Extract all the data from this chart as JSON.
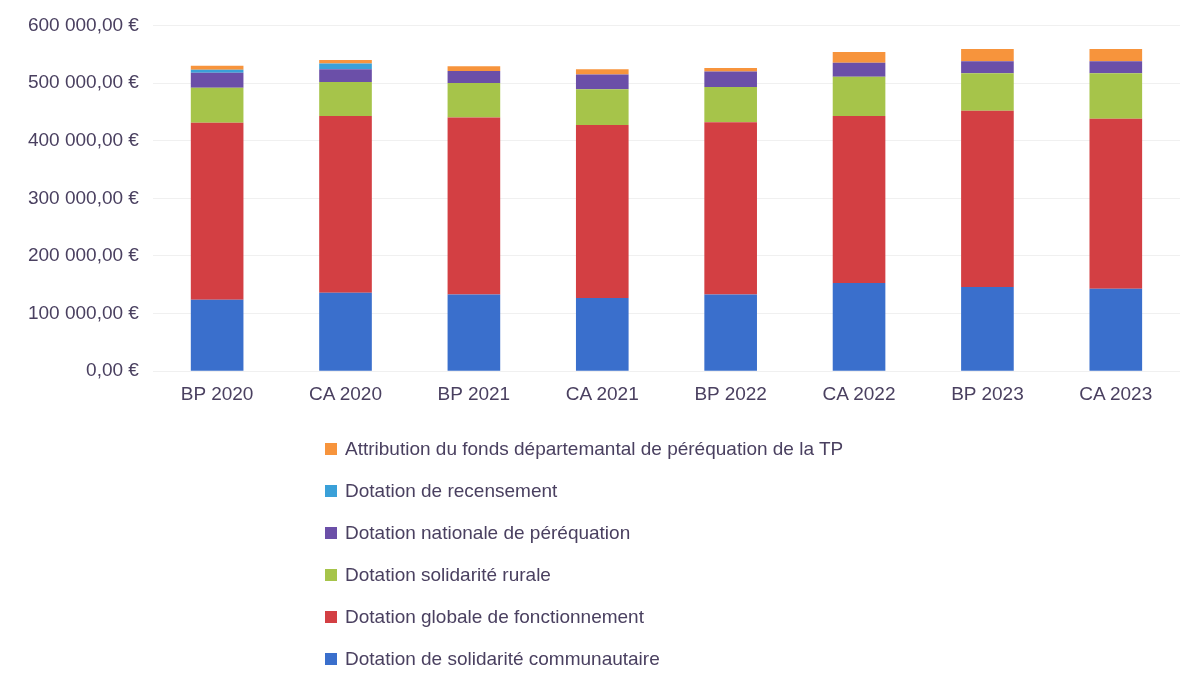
{
  "chart_data": {
    "type": "bar",
    "stacked": true,
    "categories": [
      "BP 2020",
      "CA 2020",
      "BP 2021",
      "CA 2021",
      "BP 2022",
      "CA 2022",
      "BP 2023",
      "CA 2023"
    ],
    "series": [
      {
        "name": "Dotation de solidarité communautaire",
        "color": "#3a6fcc",
        "values": [
          124000,
          136000,
          133000,
          127000,
          133000,
          153000,
          146000,
          143000
        ]
      },
      {
        "name": "Dotation globale de fonctionnement",
        "color": "#d33f43",
        "values": [
          307000,
          307000,
          307000,
          300000,
          299000,
          290000,
          306000,
          295000
        ]
      },
      {
        "name": "Dotation solidarité rurale",
        "color": "#a6c44a",
        "values": [
          61000,
          59000,
          60000,
          62000,
          61000,
          68000,
          65000,
          79000
        ]
      },
      {
        "name": "Dotation nationale de péréquation",
        "color": "#6b4fa8",
        "values": [
          26000,
          22000,
          21000,
          26000,
          27000,
          24000,
          21000,
          21000
        ]
      },
      {
        "name": "Dotation de recensement",
        "color": "#3aa0d8",
        "values": [
          5000,
          10000,
          0,
          0,
          0,
          0,
          0,
          0
        ]
      },
      {
        "name": "Attribution du fonds départemantal de péréquation de la TP",
        "color": "#f7943c",
        "values": [
          7000,
          6000,
          8000,
          9000,
          6000,
          19000,
          21000,
          21000
        ]
      }
    ],
    "ylim": [
      0,
      600000
    ],
    "yticks": [
      {
        "value": 0,
        "label": "0,00 €"
      },
      {
        "value": 100000,
        "label": "100 000,00 €"
      },
      {
        "value": 200000,
        "label": "200 000,00 €"
      },
      {
        "value": 300000,
        "label": "300 000,00 €"
      },
      {
        "value": 400000,
        "label": "400 000,00 €"
      },
      {
        "value": 500000,
        "label": "500 000,00 €"
      },
      {
        "value": 600000,
        "label": "600 000,00 €"
      }
    ],
    "grid": "y",
    "legend": "bottom"
  }
}
